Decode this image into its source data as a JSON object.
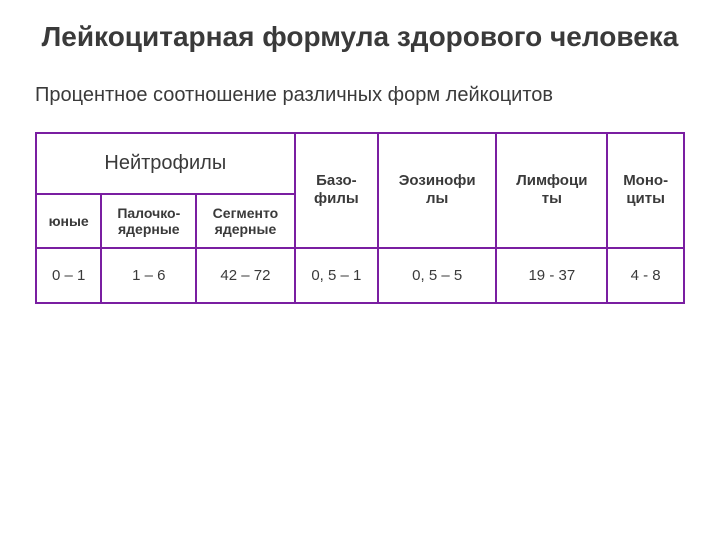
{
  "title": "Лейкоцитарная формула здорового человека",
  "subtitle": "Процентное соотношение различных форм лейкоцитов",
  "table": {
    "neutrophils_label": "Нейтрофилы",
    "columns": {
      "basophils": "Базо-\nфилы",
      "eosinophils": "Эозинофи\nлы",
      "lymphocytes": "Лимфоци\nты",
      "monocytes": "Моно-\nциты"
    },
    "neutrophil_sub": {
      "young": "юные",
      "band": "Палочко-\nядерные",
      "segmented": "Сегменто\nядерные"
    },
    "values": {
      "young": "0 – 1",
      "band": "1 – 6",
      "segmented": "42 – 72",
      "basophils": "0, 5  – 1",
      "eosinophils": "0, 5  – 5",
      "lymphocytes": "19 - 37",
      "monocytes": "4 - 8"
    }
  },
  "styling": {
    "border_color": "#7a1ea1",
    "text_color": "#3a3a3a",
    "background": "#ffffff",
    "title_fontsize": 28,
    "subtitle_fontsize": 20,
    "cell_fontsize": 15
  }
}
